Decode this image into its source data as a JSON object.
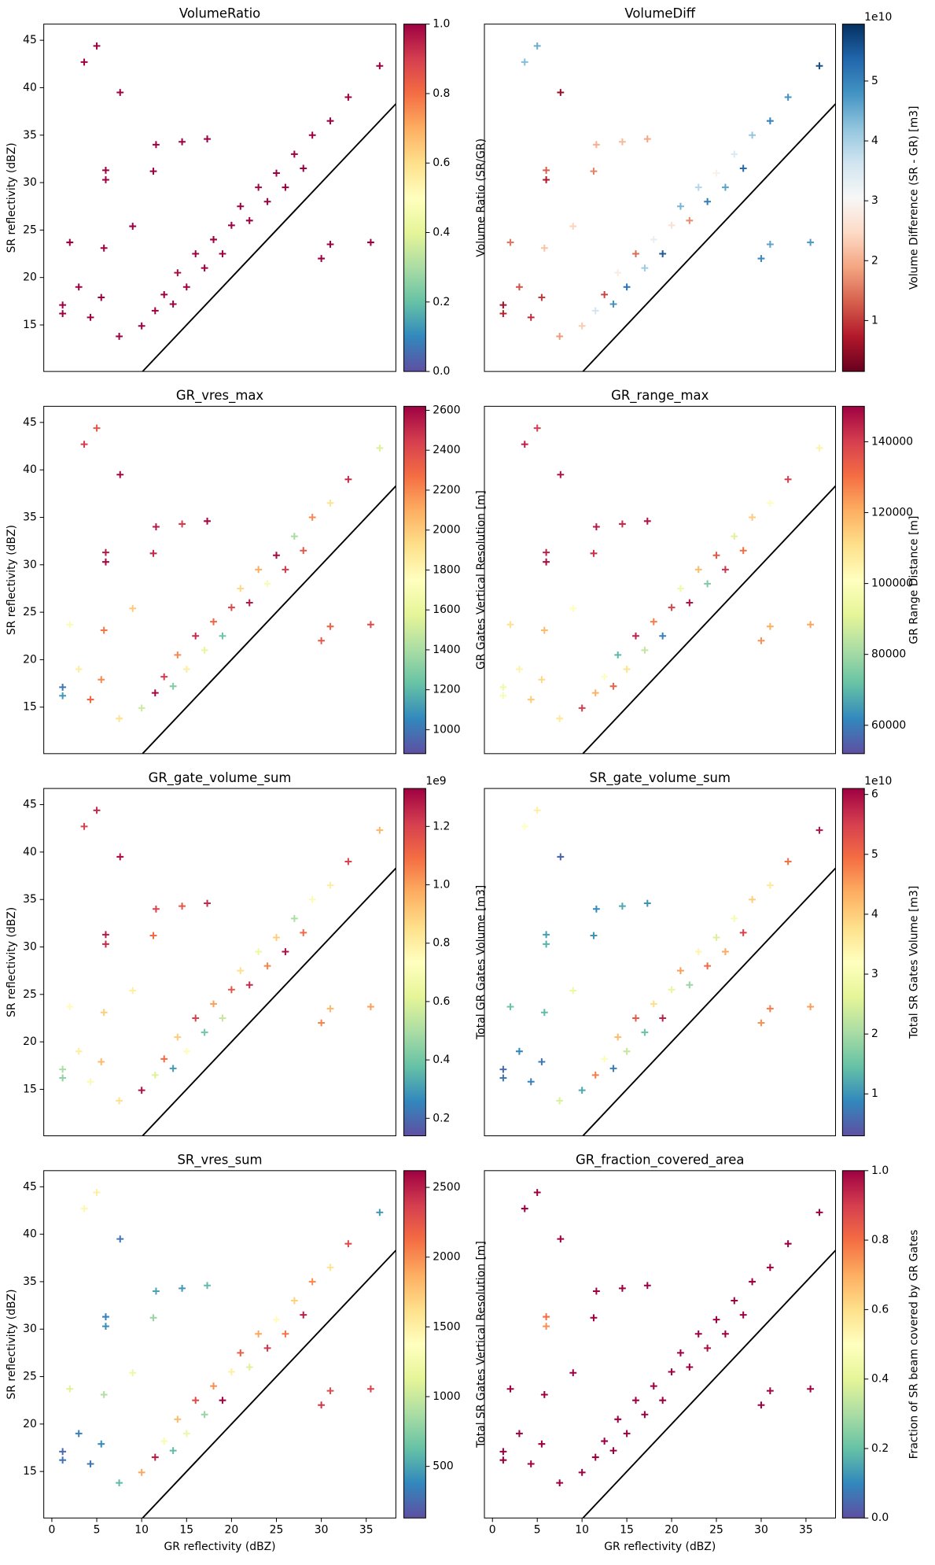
{
  "chart_data": [
    {
      "type": "scatter",
      "title": "VolumeRatio",
      "ylabel": "SR reflectivity (dBZ)",
      "identity_line": true,
      "marker_size": 3.5,
      "x": [
        1.2,
        1.2,
        2,
        3,
        3.6,
        4.3,
        5,
        5.5,
        6,
        6,
        5.8,
        7.6,
        7.5,
        9,
        11.3,
        11.6,
        14.5,
        17.3,
        30,
        31,
        35.5,
        10,
        11.5,
        12.5,
        13.5,
        14,
        15,
        16,
        17,
        18,
        19,
        20,
        21,
        22,
        23,
        24,
        25,
        26,
        27,
        28,
        29,
        31,
        33,
        36.5
      ],
      "y": [
        17.1,
        16.2,
        23.7,
        19,
        42.7,
        15.8,
        44.4,
        17.9,
        31.3,
        30.3,
        23.1,
        39.5,
        13.8,
        25.4,
        31.2,
        34,
        34.3,
        34.6,
        22,
        23.5,
        23.7,
        14.9,
        16.5,
        18.2,
        17.2,
        20.5,
        19,
        22.5,
        21,
        24,
        22.5,
        25.5,
        27.5,
        26,
        29.5,
        28,
        31,
        29.5,
        33,
        31.5,
        35,
        36.5,
        39,
        42.3
      ],
      "c": [
        1,
        1,
        1,
        1,
        1,
        1,
        1,
        1,
        1,
        1,
        1,
        1,
        1,
        1,
        1,
        1,
        1,
        1,
        1,
        1,
        1,
        1,
        1,
        1,
        1,
        0.98,
        1,
        1,
        1,
        1,
        1,
        1,
        1,
        1,
        0.99,
        1,
        1,
        1,
        1,
        1,
        1,
        1,
        1,
        1
      ],
      "xlim": [
        -0.9,
        38.3
      ],
      "ylim": [
        10.1,
        46.7
      ],
      "yticks": [
        15,
        20,
        25,
        30,
        35,
        40,
        45
      ],
      "colorbar": {
        "label": "Volume Ratio (SR/GR)",
        "cmap": "Spectral_r",
        "clim": [
          0,
          1
        ],
        "ticks": [
          {
            "value": 0,
            "label": "0.0"
          },
          0.2,
          0.4,
          0.6,
          0.8,
          {
            "value": 1,
            "label": "1.0"
          }
        ]
      }
    },
    {
      "type": "scatter",
      "title": "VolumeDiff",
      "identity_line": true,
      "marker_size": 3.5,
      "x": [
        1.2,
        1.2,
        2,
        3,
        3.6,
        4.3,
        5,
        5.5,
        6,
        6,
        5.8,
        7.6,
        7.5,
        9,
        11.3,
        11.6,
        14.5,
        17.3,
        30,
        31,
        35.5,
        10,
        11.5,
        12.5,
        13.5,
        14,
        15,
        16,
        17,
        18,
        19,
        20,
        21,
        22,
        23,
        24,
        25,
        26,
        27,
        28,
        29,
        31,
        33,
        36.5
      ],
      "y": [
        17.1,
        16.2,
        23.7,
        19,
        42.7,
        15.8,
        44.4,
        17.9,
        31.3,
        30.3,
        23.1,
        39.5,
        13.8,
        25.4,
        31.2,
        34,
        34.3,
        34.6,
        22,
        23.5,
        23.7,
        14.9,
        16.5,
        18.2,
        17.2,
        20.5,
        19,
        22.5,
        21,
        24,
        22.5,
        25.5,
        27.5,
        26,
        29.5,
        28,
        31,
        29.5,
        33,
        31.5,
        35,
        36.5,
        39,
        42.3
      ],
      "c": [
        0.6,
        0.8,
        1.5,
        1.2,
        4.3,
        0.9,
        4.5,
        1.0,
        1.3,
        0.7,
        2.2,
        0.5,
        1.8,
        2.4,
        1.6,
        2.0,
        2.1,
        1.9,
        4.9,
        4.6,
        4.7,
        2.3,
        3.6,
        1.1,
        4.8,
        2.8,
        5.2,
        1.4,
        4.1,
        3.3,
        5.5,
        2.6,
        4.4,
        1.7,
        3.9,
        5.1,
        2.9,
        4.6,
        3.5,
        5.3,
        4.2,
        5.0,
        4.8,
        5.6
      ],
      "xlim": [
        -0.9,
        38.3
      ],
      "ylim": [
        10.1,
        46.7
      ],
      "colorbar": {
        "label": "Volume Difference (SR - GR) [m3]",
        "cmap": "RdBu",
        "clim": [
          0.15,
          5.95
        ],
        "offset_label": "1e10",
        "ticks": [
          1,
          2,
          3,
          4,
          5
        ]
      }
    },
    {
      "type": "scatter",
      "title": "GR_vres_max",
      "ylabel": "SR reflectivity (dBZ)",
      "identity_line": true,
      "marker_size": 3.5,
      "x": [
        1.2,
        1.2,
        2,
        3,
        3.6,
        4.3,
        5,
        5.5,
        6,
        6,
        5.8,
        7.6,
        7.5,
        9,
        11.3,
        11.6,
        14.5,
        17.3,
        30,
        31,
        35.5,
        10,
        11.5,
        12.5,
        13.5,
        14,
        15,
        16,
        17,
        18,
        19,
        20,
        21,
        22,
        23,
        24,
        25,
        26,
        27,
        28,
        29,
        31,
        33,
        36.5
      ],
      "y": [
        17.1,
        16.2,
        23.7,
        19,
        42.7,
        15.8,
        44.4,
        17.9,
        31.3,
        30.3,
        23.1,
        39.5,
        13.8,
        25.4,
        31.2,
        34,
        34.3,
        34.6,
        22,
        23.5,
        23.7,
        14.9,
        16.5,
        18.2,
        17.2,
        20.5,
        19,
        22.5,
        21,
        24,
        22.5,
        25.5,
        27.5,
        26,
        29.5,
        28,
        31,
        29.5,
        33,
        31.5,
        35,
        36.5,
        39,
        42.3
      ],
      "c": [
        1000,
        1100,
        1700,
        1850,
        2450,
        2300,
        2350,
        2200,
        2550,
        2600,
        2250,
        2600,
        1900,
        2000,
        2500,
        2550,
        2450,
        2600,
        2350,
        2300,
        2400,
        1500,
        2600,
        2450,
        1300,
        2200,
        1850,
        2500,
        1600,
        2300,
        1250,
        2400,
        1950,
        2550,
        2100,
        1700,
        2600,
        2450,
        1400,
        2350,
        2200,
        1900,
        2500,
        1550
      ],
      "xlim": [
        -0.9,
        38.3
      ],
      "ylim": [
        10.1,
        46.7
      ],
      "yticks": [
        15,
        20,
        25,
        30,
        35,
        40,
        45
      ],
      "colorbar": {
        "label": "GR Gates Vertical Resolution [m]",
        "cmap": "Spectral_r",
        "clim": [
          880,
          2620
        ],
        "ticks": [
          1000,
          1200,
          1400,
          1600,
          1800,
          2000,
          2200,
          2400,
          2600
        ]
      }
    },
    {
      "type": "scatter",
      "title": "GR_range_max",
      "identity_line": true,
      "marker_size": 3.5,
      "x": [
        1.2,
        1.2,
        2,
        3,
        3.6,
        4.3,
        5,
        5.5,
        6,
        6,
        5.8,
        7.6,
        7.5,
        9,
        11.3,
        11.6,
        14.5,
        17.3,
        30,
        31,
        35.5,
        10,
        11.5,
        12.5,
        13.5,
        14,
        15,
        16,
        17,
        18,
        19,
        20,
        21,
        22,
        23,
        24,
        25,
        26,
        27,
        28,
        29,
        31,
        33,
        36.5
      ],
      "y": [
        17.1,
        16.2,
        23.7,
        19,
        42.7,
        15.8,
        44.4,
        17.9,
        31.3,
        30.3,
        23.1,
        39.5,
        13.8,
        25.4,
        31.2,
        34,
        34.3,
        34.6,
        22,
        23.5,
        23.7,
        14.9,
        16.5,
        18.2,
        17.2,
        20.5,
        19,
        22.5,
        21,
        24,
        22.5,
        25.5,
        27.5,
        26,
        29.5,
        28,
        31,
        29.5,
        33,
        31.5,
        35,
        36.5,
        39,
        42.3
      ],
      "c": [
        95000,
        98000,
        110000,
        105000,
        145000,
        115000,
        140000,
        112000,
        145000,
        148000,
        118000,
        147000,
        108000,
        100000,
        142000,
        146000,
        143000,
        147000,
        125000,
        120000,
        122000,
        140000,
        120000,
        100000,
        132000,
        70000,
        110000,
        145000,
        85000,
        128000,
        60000,
        138000,
        95000,
        147000,
        118000,
        75000,
        135000,
        142000,
        90000,
        130000,
        115000,
        100000,
        140000,
        105000
      ],
      "xlim": [
        -0.9,
        38.3
      ],
      "ylim": [
        10.1,
        46.7
      ],
      "colorbar": {
        "label": "GR Range Distance [m]",
        "cmap": "Spectral_r",
        "clim": [
          52000,
          150000
        ],
        "ticks": [
          60000,
          80000,
          100000,
          120000,
          140000
        ]
      }
    },
    {
      "type": "scatter",
      "title": "GR_gate_volume_sum",
      "ylabel": "SR reflectivity (dBZ)",
      "identity_line": true,
      "marker_size": 3.5,
      "x": [
        1.2,
        1.2,
        2,
        3,
        3.6,
        4.3,
        5,
        5.5,
        6,
        6,
        5.8,
        7.6,
        7.5,
        9,
        11.3,
        11.6,
        14.5,
        17.3,
        30,
        31,
        35.5,
        10,
        11.5,
        12.5,
        13.5,
        14,
        15,
        16,
        17,
        18,
        19,
        20,
        21,
        22,
        23,
        24,
        25,
        26,
        27,
        28,
        29,
        31,
        33,
        36.5
      ],
      "y": [
        17.1,
        16.2,
        23.7,
        19,
        42.7,
        15.8,
        44.4,
        17.9,
        31.3,
        30.3,
        23.1,
        39.5,
        13.8,
        25.4,
        31.2,
        34,
        34.3,
        34.6,
        22,
        23.5,
        23.7,
        14.9,
        16.5,
        18.2,
        17.2,
        20.5,
        19,
        22.5,
        21,
        24,
        22.5,
        25.5,
        27.5,
        26,
        29.5,
        28,
        31,
        29.5,
        33,
        31.5,
        35,
        36.5,
        39,
        42.3
      ],
      "c": [
        0.5,
        0.45,
        0.75,
        0.8,
        1.2,
        0.7,
        1.25,
        0.95,
        1.28,
        1.25,
        0.9,
        1.3,
        0.85,
        0.8,
        1.1,
        1.2,
        1.15,
        1.25,
        1.05,
        0.95,
        1.0,
        1.3,
        0.6,
        1.1,
        0.3,
        0.9,
        0.75,
        1.2,
        0.4,
        1.0,
        0.55,
        1.15,
        0.85,
        1.25,
        0.65,
        1.05,
        0.9,
        1.3,
        0.5,
        1.1,
        0.7,
        0.8,
        1.2,
        0.95
      ],
      "xlim": [
        -0.9,
        38.3
      ],
      "ylim": [
        10.1,
        46.7
      ],
      "yticks": [
        15,
        20,
        25,
        30,
        35,
        40,
        45
      ],
      "colorbar": {
        "label": "Total GR Gates Volume [m3]",
        "cmap": "Spectral_r",
        "clim": [
          0.14,
          1.33
        ],
        "offset_label": "1e9",
        "ticks": [
          0.2,
          0.4,
          0.6,
          0.8,
          {
            "value": 1,
            "label": "1.0"
          },
          1.2
        ]
      }
    },
    {
      "type": "scatter",
      "title": "SR_gate_volume_sum",
      "identity_line": true,
      "marker_size": 3.5,
      "x": [
        1.2,
        1.2,
        2,
        3,
        3.6,
        4.3,
        5,
        5.5,
        6,
        6,
        5.8,
        7.6,
        7.5,
        9,
        11.3,
        11.6,
        14.5,
        17.3,
        30,
        31,
        35.5,
        10,
        11.5,
        12.5,
        13.5,
        14,
        15,
        16,
        17,
        18,
        19,
        20,
        21,
        22,
        23,
        24,
        25,
        26,
        27,
        28,
        29,
        31,
        33,
        36.5
      ],
      "y": [
        17.1,
        16.2,
        23.7,
        19,
        42.7,
        15.8,
        44.4,
        17.9,
        31.3,
        30.3,
        23.1,
        39.5,
        13.8,
        25.4,
        31.2,
        34,
        34.3,
        34.6,
        22,
        23.5,
        23.7,
        14.9,
        16.5,
        18.2,
        17.2,
        20.5,
        19,
        22.5,
        21,
        24,
        22.5,
        25.5,
        27.5,
        26,
        29.5,
        28,
        31,
        29.5,
        33,
        31.5,
        35,
        36.5,
        39,
        42.3
      ],
      "c": [
        0.6,
        0.7,
        1.5,
        0.9,
        3.2,
        0.8,
        3.5,
        0.7,
        1.1,
        1.3,
        1.4,
        0.5,
        2.5,
        2.8,
        1.0,
        0.9,
        1.2,
        1.0,
        4.6,
        4.8,
        4.5,
        1.2,
        4.8,
        3.1,
        0.8,
        4.2,
        2.3,
        5.2,
        1.5,
        3.8,
        5.8,
        2.7,
        4.5,
        1.9,
        3.4,
        5.0,
        2.5,
        4.4,
        3.0,
        5.5,
        4.0,
        3.6,
        4.9,
        5.9
      ],
      "xlim": [
        -0.9,
        38.3
      ],
      "ylim": [
        10.1,
        46.7
      ],
      "colorbar": {
        "label": "Total SR Gates Volume [m3]",
        "cmap": "Spectral_r",
        "clim": [
          0.3,
          6.1
        ],
        "offset_label": "1e10",
        "ticks": [
          1,
          2,
          3,
          4,
          5,
          6
        ]
      }
    },
    {
      "type": "scatter",
      "title": "SR_vres_sum",
      "xlabel": "GR reflectivity (dBZ)",
      "ylabel": "SR reflectivity (dBZ)",
      "identity_line": true,
      "marker_size": 3.5,
      "x": [
        1.2,
        1.2,
        2,
        3,
        3.6,
        4.3,
        5,
        5.5,
        6,
        6,
        5.8,
        7.6,
        7.5,
        9,
        11.3,
        11.6,
        14.5,
        17.3,
        30,
        31,
        35.5,
        10,
        11.5,
        12.5,
        13.5,
        14,
        15,
        16,
        17,
        18,
        19,
        20,
        21,
        22,
        23,
        24,
        25,
        26,
        27,
        28,
        29,
        31,
        33,
        36.5
      ],
      "y": [
        17.1,
        16.2,
        23.7,
        19,
        42.7,
        15.8,
        44.4,
        17.9,
        31.3,
        30.3,
        23.1,
        39.5,
        13.8,
        25.4,
        31.2,
        34,
        34.3,
        34.6,
        22,
        23.5,
        23.7,
        14.9,
        16.5,
        18.2,
        17.2,
        20.5,
        19,
        22.5,
        21,
        24,
        22.5,
        25.5,
        27.5,
        26,
        29.5,
        28,
        31,
        29.5,
        33,
        31.5,
        35,
        36.5,
        39,
        42.3
      ],
      "c": [
        250,
        300,
        1100,
        350,
        1450,
        300,
        1500,
        400,
        350,
        400,
        900,
        300,
        600,
        1200,
        800,
        500,
        450,
        600,
        2400,
        2300,
        2350,
        1900,
        2500,
        1300,
        600,
        1800,
        1200,
        2300,
        800,
        2000,
        2600,
        1500,
        2200,
        1100,
        1900,
        2400,
        1400,
        2100,
        1700,
        2500,
        2000,
        1600,
        2300,
        450
      ],
      "xlim": [
        -0.9,
        38.3
      ],
      "ylim": [
        10.1,
        46.7
      ],
      "xticks": [
        0,
        5,
        10,
        15,
        20,
        25,
        30,
        35
      ],
      "yticks": [
        15,
        20,
        25,
        30,
        35,
        40,
        45
      ],
      "colorbar": {
        "label": "Total SR Gates Vertical Resolution [m]",
        "cmap": "Spectral_r",
        "clim": [
          130,
          2620
        ],
        "ticks": [
          500,
          1000,
          1500,
          2000,
          2500
        ]
      }
    },
    {
      "type": "scatter",
      "title": "GR_fraction_covered_area",
      "xlabel": "GR reflectivity (dBZ)",
      "identity_line": true,
      "marker_size": 3.5,
      "x": [
        1.2,
        1.2,
        2,
        3,
        3.6,
        4.3,
        5,
        5.5,
        6,
        6,
        5.8,
        7.6,
        7.5,
        9,
        11.3,
        11.6,
        14.5,
        17.3,
        30,
        31,
        35.5,
        10,
        11.5,
        12.5,
        13.5,
        14,
        15,
        16,
        17,
        18,
        19,
        20,
        21,
        22,
        23,
        24,
        25,
        26,
        27,
        28,
        29,
        31,
        33,
        36.5
      ],
      "y": [
        17.1,
        16.2,
        23.7,
        19,
        42.7,
        15.8,
        44.4,
        17.9,
        31.3,
        30.3,
        23.1,
        39.5,
        13.8,
        25.4,
        31.2,
        34,
        34.3,
        34.6,
        22,
        23.5,
        23.7,
        14.9,
        16.5,
        18.2,
        17.2,
        20.5,
        19,
        22.5,
        21,
        24,
        22.5,
        25.5,
        27.5,
        26,
        29.5,
        28,
        31,
        29.5,
        33,
        31.5,
        35,
        36.5,
        39,
        42.3
      ],
      "c": [
        1,
        1,
        1,
        1,
        1,
        1,
        1,
        1,
        0.8,
        0.75,
        1,
        1,
        1,
        1,
        1,
        1,
        1,
        1,
        1,
        1,
        1,
        1,
        1,
        1,
        1,
        1,
        1,
        1,
        1,
        1,
        1,
        1,
        1,
        1,
        1,
        0.98,
        1,
        1,
        1,
        1,
        1,
        1,
        1,
        1
      ],
      "xlim": [
        -0.9,
        38.3
      ],
      "ylim": [
        10.1,
        46.7
      ],
      "xticks": [
        0,
        5,
        10,
        15,
        20,
        25,
        30,
        35
      ],
      "colorbar": {
        "label": "Fraction of SR beam covered by GR Gates",
        "cmap": "Spectral_r",
        "clim": [
          0,
          1
        ],
        "ticks": [
          {
            "value": 0,
            "label": "0.0"
          },
          0.2,
          0.4,
          0.6,
          0.8,
          {
            "value": 1,
            "label": "1.0"
          }
        ]
      }
    }
  ]
}
